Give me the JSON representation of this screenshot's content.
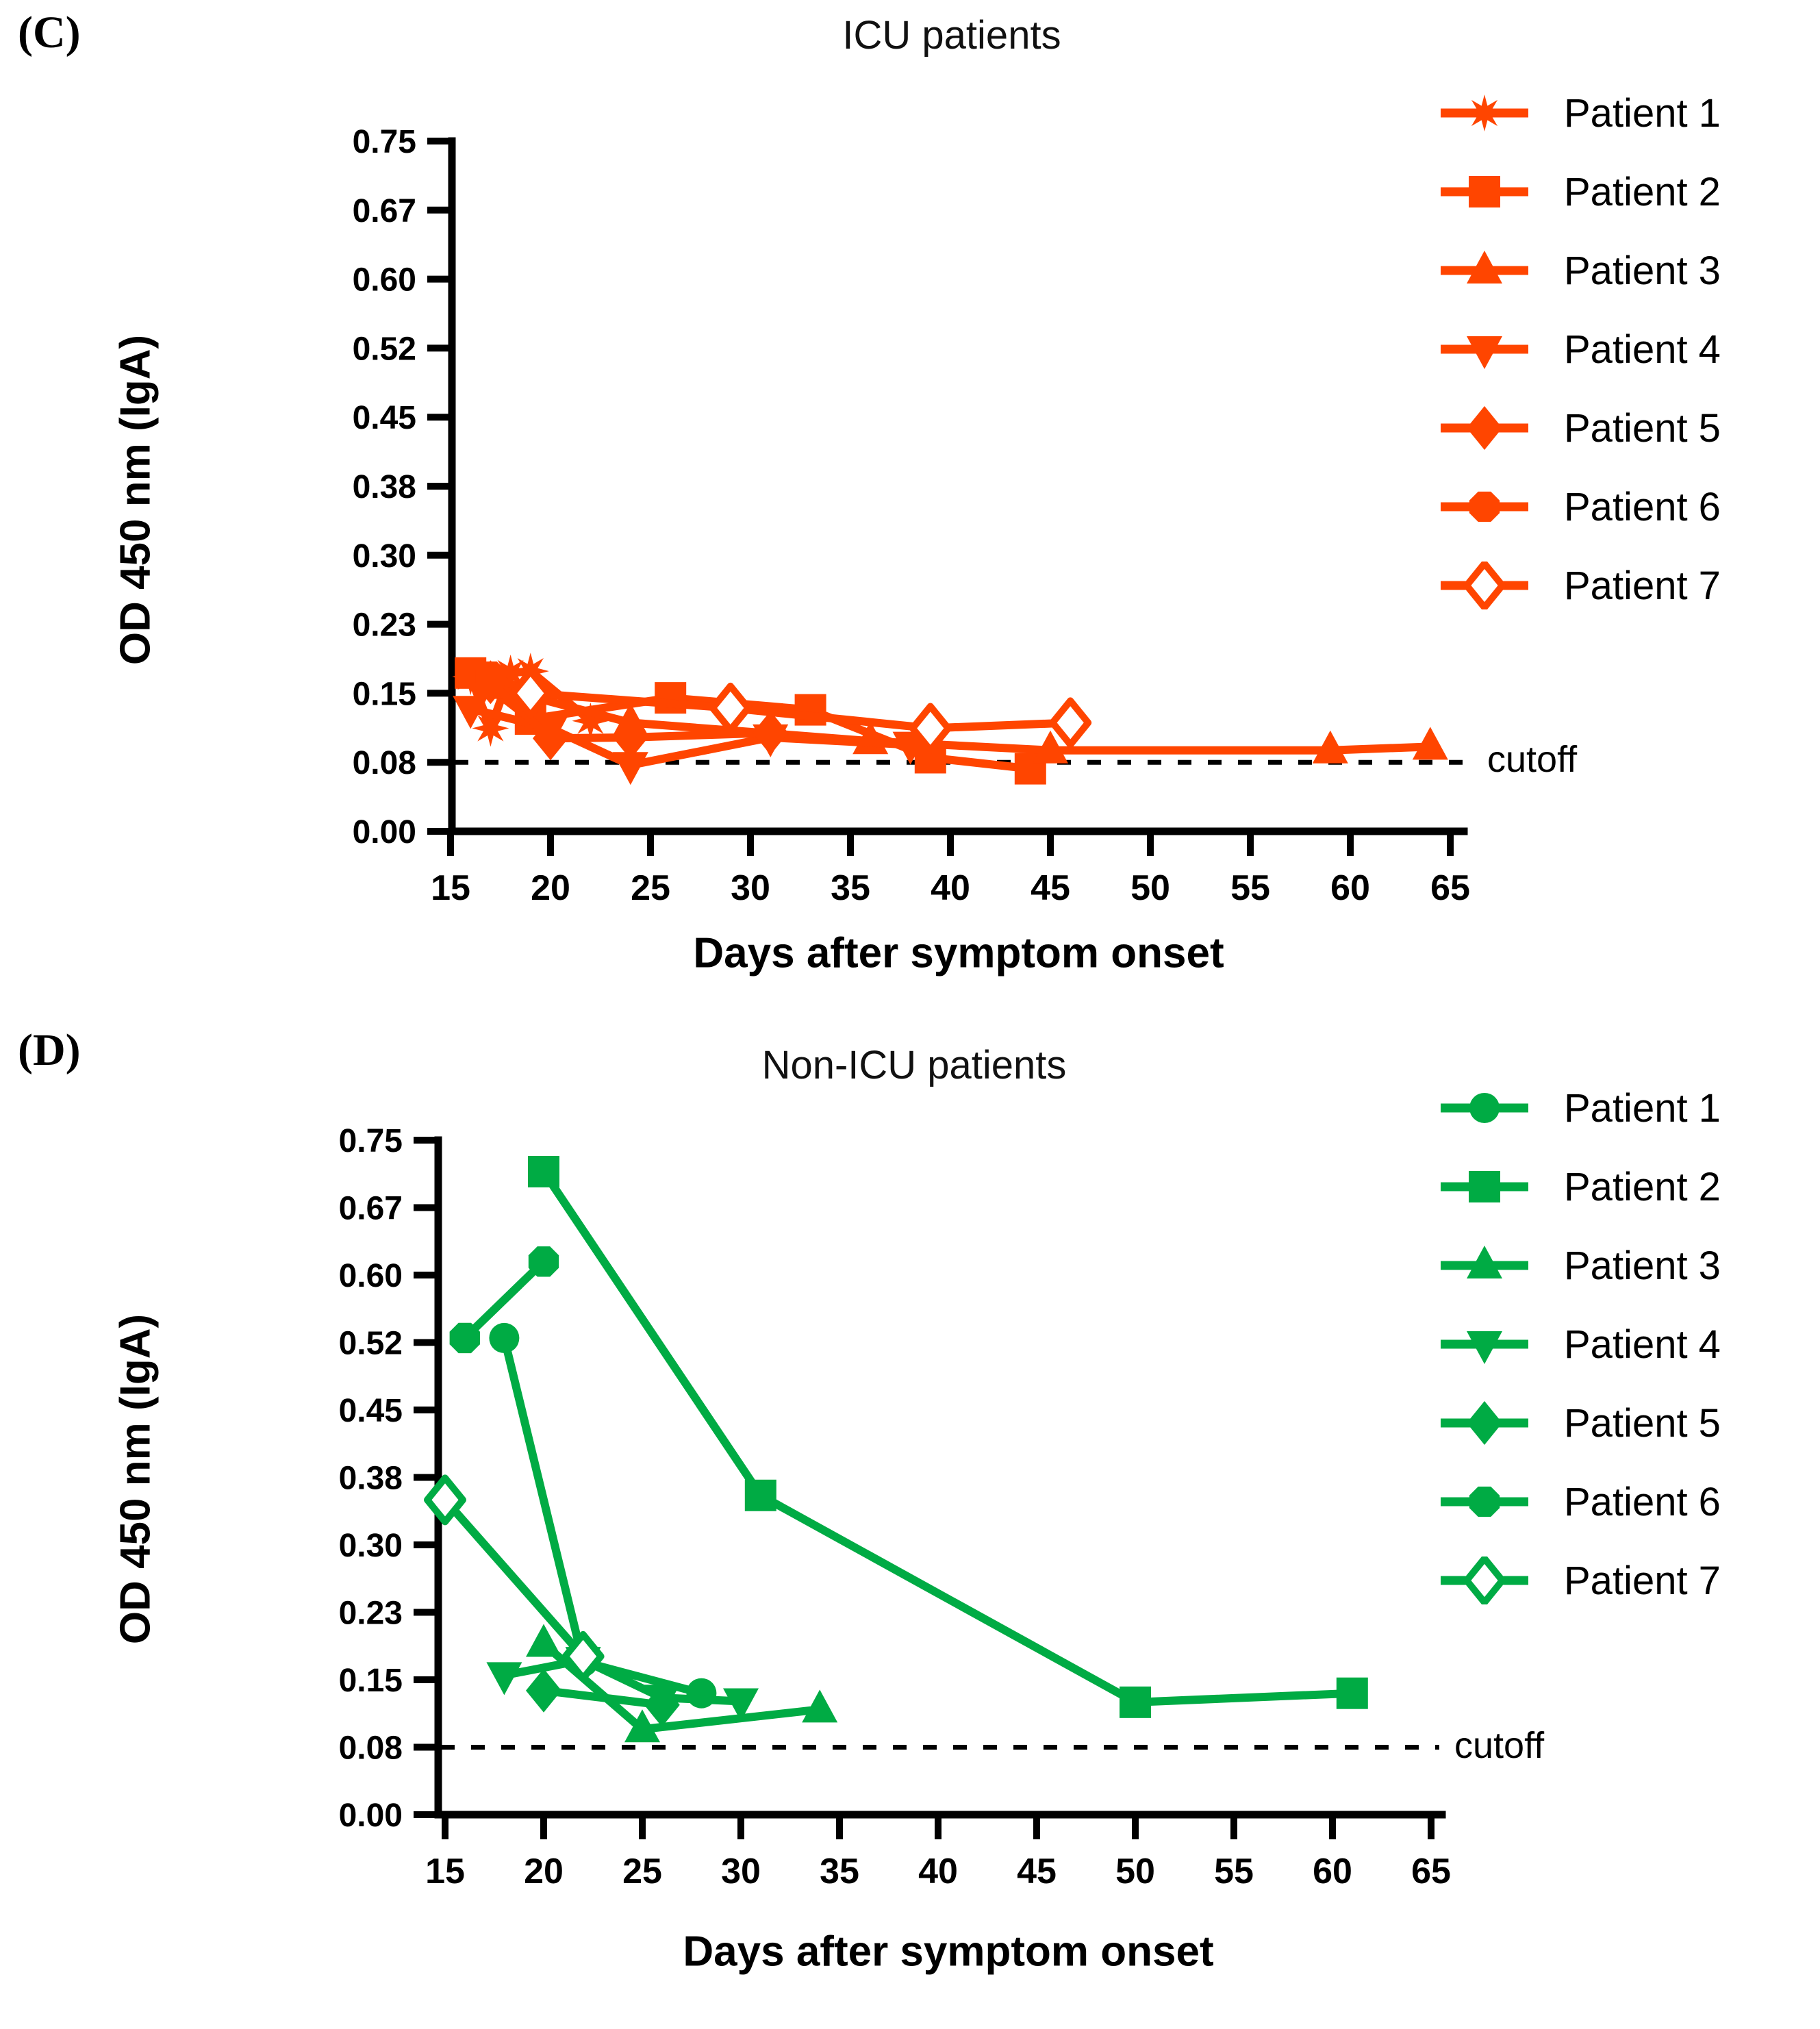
{
  "page": {
    "background": "#ffffff"
  },
  "panels": [
    {
      "panel_label": "(C)",
      "title": "ICU patients",
      "xlabel": "Days after symptom onset",
      "ylabel": "OD 450 nm (IgA)",
      "cutoff_label": "cutoff",
      "color": "#FF4500",
      "legend": [
        {
          "label": "Patient 1",
          "marker": "star"
        },
        {
          "label": "Patient 2",
          "marker": "square"
        },
        {
          "label": "Patient 3",
          "marker": "triup"
        },
        {
          "label": "Patient 4",
          "marker": "tridown"
        },
        {
          "label": "Patient 5",
          "marker": "diamond"
        },
        {
          "label": "Patient 6",
          "marker": "hexagon"
        },
        {
          "label": "Patient 7",
          "marker": "diamondOpen"
        }
      ]
    },
    {
      "panel_label": "(D)",
      "title": "Non-ICU patients",
      "xlabel": "Days after symptom onset",
      "ylabel": "OD 450 nm (IgA)",
      "cutoff_label": "cutoff",
      "color": "#00AB44",
      "legend": [
        {
          "label": "Patient 1",
          "marker": "circle"
        },
        {
          "label": "Patient 2",
          "marker": "square"
        },
        {
          "label": "Patient 3",
          "marker": "triup"
        },
        {
          "label": "Patient 4",
          "marker": "tridown"
        },
        {
          "label": "Patient 5",
          "marker": "diamond"
        },
        {
          "label": "Patient 6",
          "marker": "hexagon"
        },
        {
          "label": "Patient 7",
          "marker": "diamondOpen"
        }
      ]
    }
  ],
  "chart_data": [
    {
      "type": "line",
      "title": "ICU patients",
      "xlabel": "Days after symptom onset",
      "ylabel": "OD 450 nm (IgA)",
      "xlim": [
        13.5,
        66
      ],
      "ylim": [
        0,
        0.75
      ],
      "x_ticks": [
        15,
        20,
        25,
        30,
        35,
        40,
        45,
        50,
        55,
        60,
        65
      ],
      "y_tick_labels": [
        "0.00",
        "0.08",
        "0.15",
        "0.23",
        "0.30",
        "0.38",
        "0.45",
        "0.52",
        "0.60",
        "0.67",
        "0.75"
      ],
      "y_tick_step": 0.075,
      "grid": false,
      "legend_position": "right",
      "cutoff_value": 0.08,
      "series": [
        {
          "name": "Patient 1",
          "marker": "star",
          "points": [
            [
              16,
              0.168
            ],
            [
              17,
              0.112
            ],
            [
              18,
              0.172
            ],
            [
              19,
              0.174
            ],
            [
              22,
              0.12
            ]
          ]
        },
        {
          "name": "Patient 2",
          "marker": "square",
          "points": [
            [
              16,
              0.172
            ],
            [
              19,
              0.122
            ],
            [
              26,
              0.145
            ],
            [
              33,
              0.132
            ],
            [
              39,
              0.08
            ],
            [
              44,
              0.068
            ]
          ]
        },
        {
          "name": "Patient 3",
          "marker": "triup",
          "points": [
            [
              17,
              0.158
            ],
            [
              24,
              0.118
            ],
            [
              36,
              0.098
            ],
            [
              45,
              0.088
            ],
            [
              59,
              0.088
            ],
            [
              64,
              0.092
            ]
          ]
        },
        {
          "name": "Patient 4",
          "marker": "tridown",
          "points": [
            [
              16,
              0.133
            ],
            [
              20,
              0.112
            ],
            [
              24,
              0.072
            ],
            [
              31,
              0.102
            ],
            [
              38,
              0.094
            ]
          ]
        },
        {
          "name": "Patient 5",
          "marker": "diamond",
          "points": [
            [
              17,
              0.162
            ],
            [
              20,
              0.101
            ],
            [
              24,
              0.102
            ],
            [
              31,
              0.107
            ]
          ]
        },
        {
          "name": "Patient 6",
          "marker": "hexagon",
          "points": [
            [
              16,
              0.172
            ],
            [
              17,
              0.168
            ],
            [
              19,
              0.153
            ]
          ]
        },
        {
          "name": "Patient 7",
          "marker": "diamondOpen",
          "points": [
            [
              19,
              0.15
            ],
            [
              29,
              0.134
            ],
            [
              39,
              0.112
            ],
            [
              46,
              0.118
            ]
          ]
        }
      ]
    },
    {
      "type": "line",
      "title": "Non-ICU patients",
      "xlabel": "Days after symptom onset",
      "ylabel": "OD 450 nm (IgA)",
      "xlim": [
        13.5,
        66
      ],
      "ylim": [
        0,
        0.75
      ],
      "x_ticks": [
        15,
        20,
        25,
        30,
        35,
        40,
        45,
        50,
        55,
        60,
        65
      ],
      "y_tick_labels": [
        "0.00",
        "0.08",
        "0.15",
        "0.23",
        "0.30",
        "0.38",
        "0.45",
        "0.52",
        "0.60",
        "0.67",
        "0.75"
      ],
      "y_tick_step": 0.075,
      "grid": false,
      "legend_position": "right",
      "cutoff_value": 0.08,
      "series": [
        {
          "name": "Patient 1",
          "marker": "circle",
          "points": [
            [
              18,
              0.53
            ],
            [
              22,
              0.17
            ],
            [
              28,
              0.135
            ]
          ]
        },
        {
          "name": "Patient 2",
          "marker": "square",
          "points": [
            [
              20,
              0.715
            ],
            [
              31,
              0.355
            ],
            [
              50,
              0.125
            ],
            [
              61,
              0.135
            ]
          ]
        },
        {
          "name": "Patient 3",
          "marker": "triup",
          "points": [
            [
              20,
              0.19
            ],
            [
              25,
              0.095
            ],
            [
              34,
              0.117
            ]
          ]
        },
        {
          "name": "Patient 4",
          "marker": "tridown",
          "points": [
            [
              18,
              0.155
            ],
            [
              22,
              0.172
            ],
            [
              26,
              0.13
            ],
            [
              30,
              0.126
            ]
          ]
        },
        {
          "name": "Patient 5",
          "marker": "diamond",
          "points": [
            [
              20,
              0.138
            ],
            [
              26,
              0.122
            ]
          ]
        },
        {
          "name": "Patient 6",
          "marker": "hexagon",
          "points": [
            [
              16,
              0.53
            ],
            [
              20,
              0.615
            ]
          ]
        },
        {
          "name": "Patient 7",
          "marker": "diamondOpen",
          "points": [
            [
              15,
              0.35
            ],
            [
              22,
              0.176
            ]
          ]
        }
      ]
    }
  ]
}
